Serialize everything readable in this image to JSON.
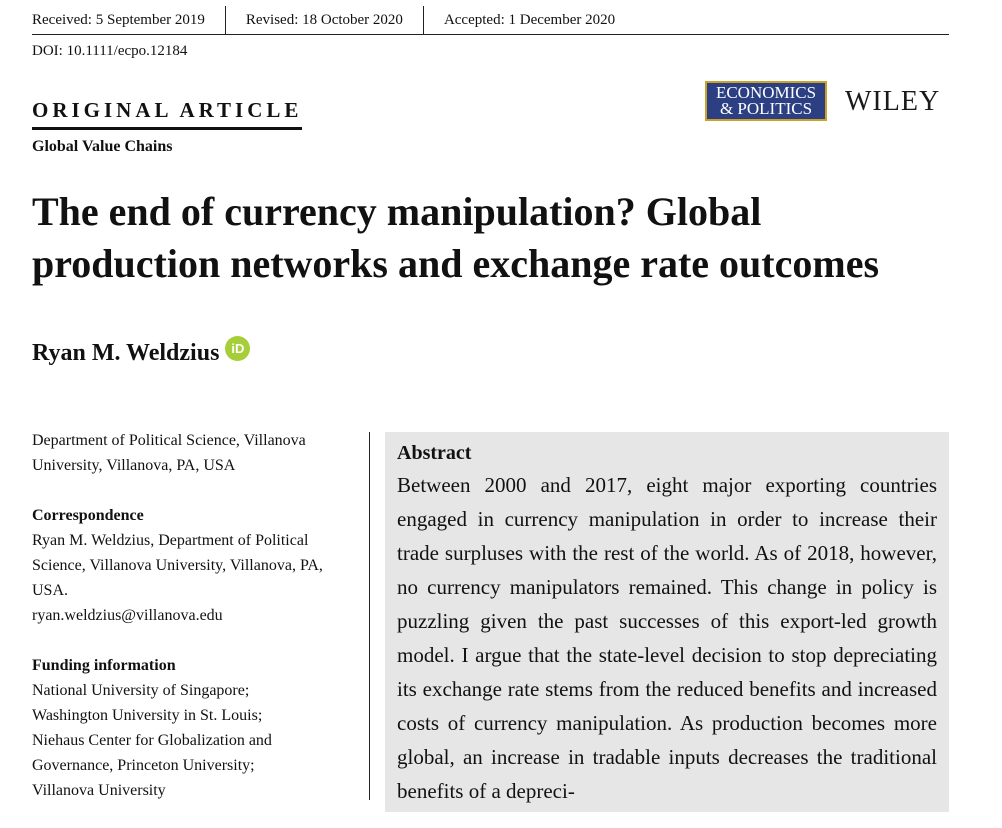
{
  "header": {
    "received": "Received: 5 September 2019",
    "revised": "Revised: 18 October 2020",
    "accepted": "Accepted: 1 December 2020",
    "doi": "DOI: 10.1111/ecpo.12184"
  },
  "article_type": "ORIGINAL ARTICLE",
  "section": "Global Value Chains",
  "journal": {
    "line1": "ECONOMICS",
    "line2": "& POLITICS",
    "colors": {
      "bg": "#2b3f82",
      "border": "#c9a227"
    }
  },
  "publisher": "WILEY",
  "title": "The end of currency manipulation? Global production networks and exchange rate outcomes",
  "author": {
    "name": "Ryan M. Weldzius",
    "orcid_label": "iD",
    "orcid_color": "#a6ce39"
  },
  "affiliation": "Department of Political Science, Villanova University, Villanova, PA, USA",
  "correspondence": {
    "heading": "Correspondence",
    "text": "Ryan M. Weldzius, Department of Political Science, Villanova University, Villanova, PA, USA.",
    "email": "ryan.weldzius@villanova.edu"
  },
  "funding": {
    "heading": "Funding information",
    "lines": [
      "National University of Singapore;",
      "Washington University in St. Louis;",
      "Niehaus Center for Globalization and Governance, Princeton University;",
      "Villanova University"
    ]
  },
  "abstract": {
    "heading": "Abstract",
    "text": "Between 2000 and 2017, eight major exporting countries engaged in currency manipulation in order to increase their trade surpluses with the rest of the world. As of 2018, however, no currency manipulators remained. This change in policy is puzzling given the past successes of this export-led growth model. I argue that the state-level decision to stop depreciating its exchange rate stems from the reduced benefits and increased costs of currency manipulation. As production becomes more global, an increase in tradable inputs decreases the traditional benefits of a depreci-"
  }
}
